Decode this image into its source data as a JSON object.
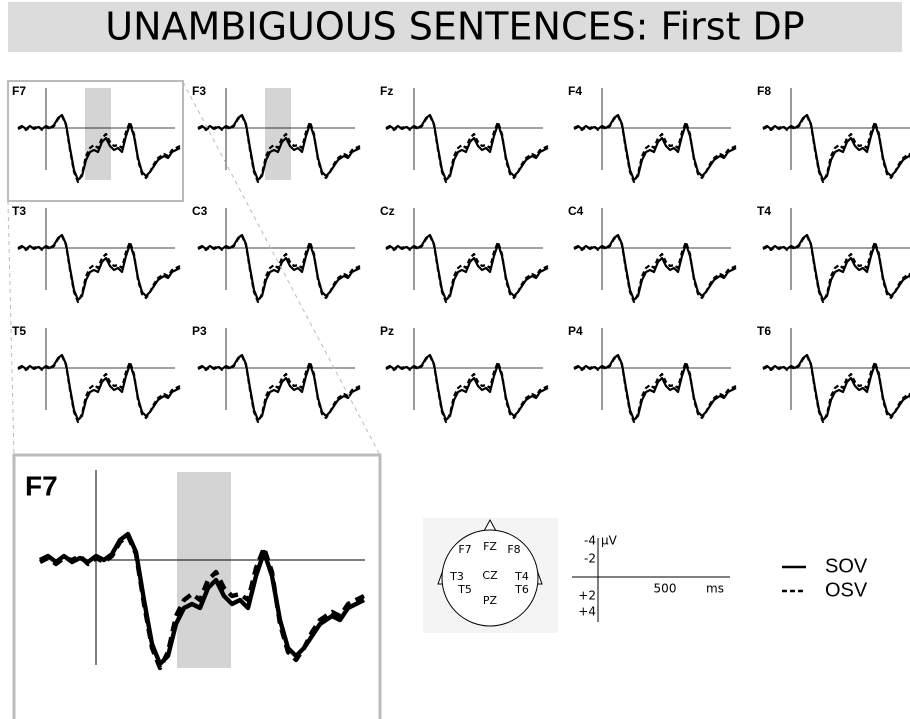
{
  "title": "UNAMBIGUOUS SENTENCES: First DP",
  "panels": [
    {
      "label": "F7"
    },
    {
      "label": "F3"
    },
    {
      "label": "Fz"
    },
    {
      "label": "F4"
    },
    {
      "label": "F8"
    },
    {
      "label": "T3"
    },
    {
      "label": "C3"
    },
    {
      "label": "Cz"
    },
    {
      "label": "C4"
    },
    {
      "label": "T4"
    },
    {
      "label": "T5"
    },
    {
      "label": "P3"
    },
    {
      "label": "Pz"
    },
    {
      "label": "P4"
    },
    {
      "label": "T6"
    }
  ],
  "zoom": {
    "label": "F7"
  },
  "head_map": {
    "labels": [
      "F7",
      "FZ",
      "F8",
      "T3",
      "CZ",
      "T4",
      "T5",
      "PZ",
      "T6"
    ]
  },
  "scale": {
    "unit": "μV",
    "time_unit": "ms",
    "labels": [
      "-4",
      "-2",
      "+2",
      "+4"
    ],
    "time_label": "500"
  },
  "legend": [
    {
      "name": "SOV",
      "style": "solid"
    },
    {
      "name": "OSV",
      "style": "dashed"
    }
  ]
}
